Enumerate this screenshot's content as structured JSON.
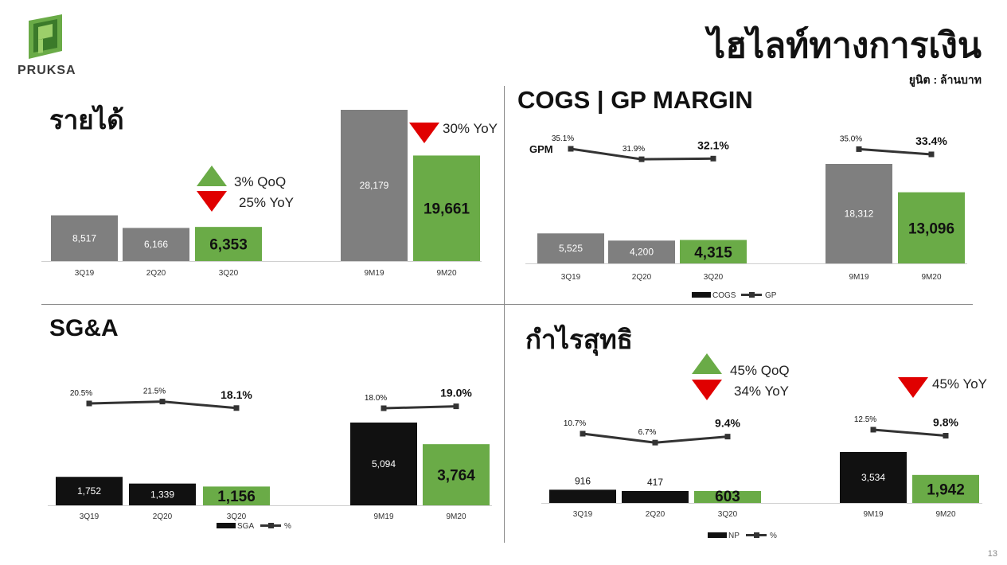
{
  "header": {
    "title": "ไฮไลท์ทางการเงิน",
    "unit": "ยูนิต : ล้านบาท",
    "brand": "PRUKSA",
    "page_number": "13"
  },
  "colors": {
    "green": "#6aab47",
    "grey": "#7f7f7f",
    "black": "#111111",
    "red": "#e00000",
    "line": "#333333"
  },
  "panels": {
    "revenue": {
      "title": "รายได้",
      "qoq": "3% QoQ",
      "yoy_small": "25% YoY",
      "yoy_big": "30% YoY"
    },
    "cogs": {
      "title": "COGS | GP MARGIN",
      "gpm_label": "GPM"
    },
    "sga": {
      "title": "SG&A"
    },
    "np": {
      "title": "กำไรสุทธิ",
      "qoq": "45% QoQ",
      "yoy_small": "34% YoY",
      "yoy_big": "45% YoY"
    }
  },
  "chart_data": [
    {
      "id": "revenue",
      "type": "bar",
      "title": "รายได้",
      "categories": [
        "3Q19",
        "2Q20",
        "3Q20",
        "9M19",
        "9M20"
      ],
      "values": [
        8517,
        6166,
        6353,
        28179,
        19661
      ],
      "labels": [
        "8,517",
        "6,166",
        "6,353",
        "28,179",
        "19,661"
      ],
      "ylim": [
        0,
        30000
      ]
    },
    {
      "id": "cogs",
      "type": "bar",
      "title": "COGS | GP MARGIN",
      "categories": [
        "3Q19",
        "2Q20",
        "3Q20",
        "9M19",
        "9M20"
      ],
      "series": [
        {
          "name": "COGS",
          "values": [
            5525,
            4200,
            4315,
            18312,
            13096
          ],
          "labels": [
            "5,525",
            "4,200",
            "4,315",
            "18,312",
            "13,096"
          ]
        },
        {
          "name": "GP",
          "values": [
            35.1,
            31.9,
            32.1,
            35.0,
            33.4
          ],
          "labels": [
            "35.1%",
            "31.9%",
            "32.1%",
            "35.0%",
            "33.4%"
          ]
        }
      ],
      "legend": [
        "COGS",
        "GP"
      ],
      "legend_position": "bottom"
    },
    {
      "id": "sga",
      "type": "bar",
      "title": "SG&A",
      "categories": [
        "3Q19",
        "2Q20",
        "3Q20",
        "9M19",
        "9M20"
      ],
      "series": [
        {
          "name": "SGA",
          "values": [
            1752,
            1339,
            1156,
            5094,
            3764
          ],
          "labels": [
            "1,752",
            "1,339",
            "1,156",
            "5,094",
            "3,764"
          ]
        },
        {
          "name": "%",
          "values": [
            20.5,
            21.5,
            18.1,
            18.0,
            19.0
          ],
          "labels": [
            "20.5%",
            "21.5%",
            "18.1%",
            "18.0%",
            "19.0%"
          ]
        }
      ],
      "legend": [
        "SGA",
        "%"
      ],
      "legend_position": "bottom"
    },
    {
      "id": "np",
      "type": "bar",
      "title": "กำไรสุทธิ",
      "categories": [
        "3Q19",
        "2Q20",
        "3Q20",
        "9M19",
        "9M20"
      ],
      "series": [
        {
          "name": "NP",
          "values": [
            916,
            417,
            603,
            3534,
            1942
          ],
          "labels": [
            "916",
            "417",
            "603",
            "3,534",
            "1,942"
          ]
        },
        {
          "name": "%",
          "values": [
            10.7,
            6.7,
            9.4,
            12.5,
            9.8
          ],
          "labels": [
            "10.7%",
            "6.7%",
            "9.4%",
            "12.5%",
            "9.8%"
          ]
        }
      ],
      "legend": [
        "NP",
        "%"
      ],
      "legend_position": "bottom"
    }
  ]
}
